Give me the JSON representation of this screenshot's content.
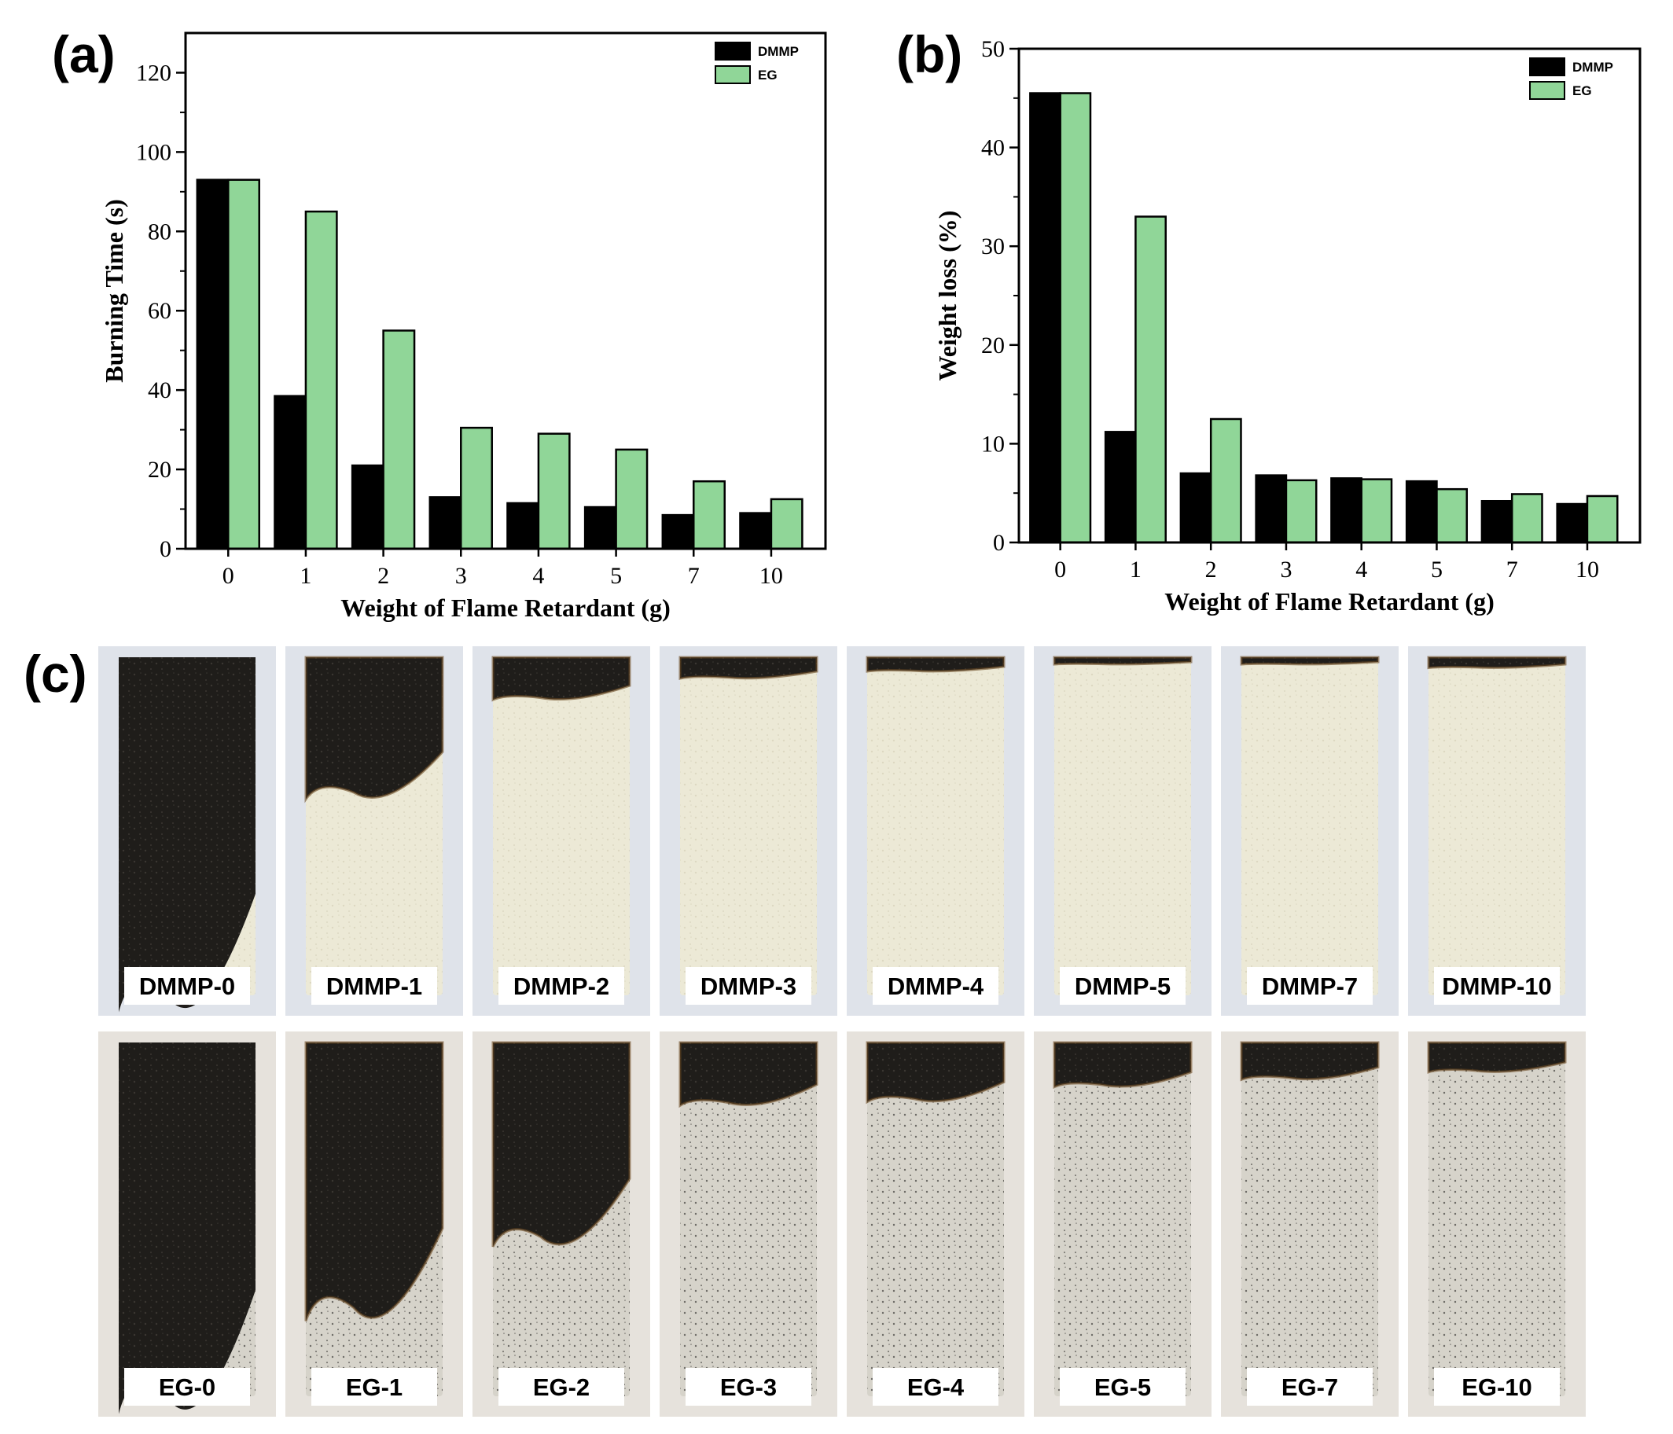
{
  "panel_letters": {
    "a": "(a)",
    "b": "(b)",
    "c": "(c)"
  },
  "colors": {
    "DMMP": "#000000",
    "EG": "#90d698",
    "axis": "#000000"
  },
  "chart_data": [
    {
      "type": "bar",
      "panel": "(a)",
      "categories": [
        "0",
        "1",
        "2",
        "3",
        "4",
        "5",
        "7",
        "10"
      ],
      "series": [
        {
          "name": "DMMP",
          "values": [
            93,
            38.5,
            21,
            13,
            11.5,
            10.5,
            8.5,
            9
          ]
        },
        {
          "name": "EG",
          "values": [
            93,
            85,
            55,
            30.5,
            29,
            25,
            17,
            12.5
          ]
        }
      ],
      "xlabel": "Weight of Flame Retardant (g)",
      "ylabel": "Burning Time (s)",
      "ylim": [
        0,
        130
      ],
      "yticks": [
        0,
        20,
        40,
        60,
        80,
        100,
        120
      ],
      "legend": "top-right",
      "grid": false
    },
    {
      "type": "bar",
      "panel": "(b)",
      "categories": [
        "0",
        "1",
        "2",
        "3",
        "4",
        "5",
        "7",
        "10"
      ],
      "series": [
        {
          "name": "DMMP",
          "values": [
            45.5,
            11.2,
            7,
            6.8,
            6.5,
            6.2,
            4.2,
            3.9
          ]
        },
        {
          "name": "EG",
          "values": [
            45.5,
            33,
            12.5,
            6.3,
            6.4,
            5.4,
            4.9,
            4.7
          ]
        }
      ],
      "xlabel": "Weight of Flame Retardant (g)",
      "ylabel": "Weight loss (%)",
      "ylim": [
        0,
        50
      ],
      "yticks": [
        0,
        10,
        20,
        30,
        40,
        50
      ],
      "legend": "top-right",
      "grid": false
    }
  ],
  "samples": {
    "dmmp_row": [
      "DMMP-0",
      "DMMP-1",
      "DMMP-2",
      "DMMP-3",
      "DMMP-4",
      "DMMP-5",
      "DMMP-7",
      "DMMP-10"
    ],
    "eg_row": [
      "EG-0",
      "EG-1",
      "EG-2",
      "EG-3",
      "EG-4",
      "EG-5",
      "EG-7",
      "EG-10"
    ],
    "char_fraction_dmmp": [
      1.0,
      0.4,
      0.12,
      0.06,
      0.04,
      0.02,
      0.02,
      0.03
    ],
    "char_fraction_eg": [
      1.0,
      0.75,
      0.55,
      0.17,
      0.16,
      0.12,
      0.1,
      0.08
    ]
  }
}
